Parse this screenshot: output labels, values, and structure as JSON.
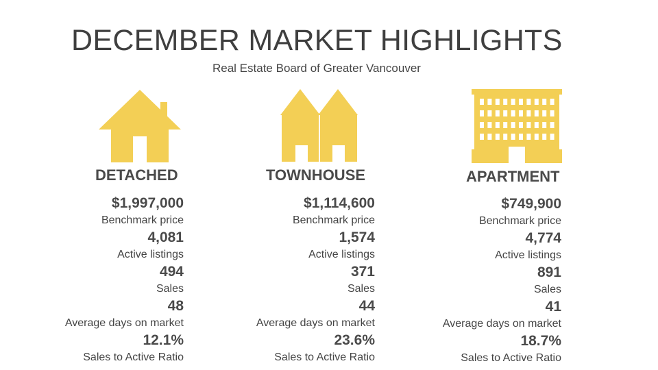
{
  "title": "DECEMBER MARKET HIGHLIGHTS",
  "subtitle": "Real Estate Board of Greater Vancouver",
  "accent_color": "#f3cf55",
  "categories": [
    {
      "name": "DETACHED",
      "icon": "house-icon",
      "metrics": [
        {
          "value": "$1,997,000",
          "label": "Benchmark price"
        },
        {
          "value": "4,081",
          "label": "Active listings"
        },
        {
          "value": "494",
          "label": "Sales"
        },
        {
          "value": "48",
          "label": "Average days on market"
        },
        {
          "value": "12.1%",
          "label": "Sales to Active Ratio"
        }
      ]
    },
    {
      "name": "TOWNHOUSE",
      "icon": "townhouse-icon",
      "metrics": [
        {
          "value": "$1,114,600",
          "label": "Benchmark price"
        },
        {
          "value": "1,574",
          "label": "Active listings"
        },
        {
          "value": "371",
          "label": "Sales"
        },
        {
          "value": "44",
          "label": "Average days on market"
        },
        {
          "value": "23.6%",
          "label": "Sales to Active Ratio"
        }
      ]
    },
    {
      "name": "APARTMENT",
      "icon": "apartment-building-icon",
      "metrics": [
        {
          "value": "$749,900",
          "label": "Benchmark price"
        },
        {
          "value": "4,774",
          "label": "Active listings"
        },
        {
          "value": "891",
          "label": "Sales"
        },
        {
          "value": "41",
          "label": "Average days on market"
        },
        {
          "value": "18.7%",
          "label": "Sales to Active Ratio"
        }
      ]
    }
  ]
}
